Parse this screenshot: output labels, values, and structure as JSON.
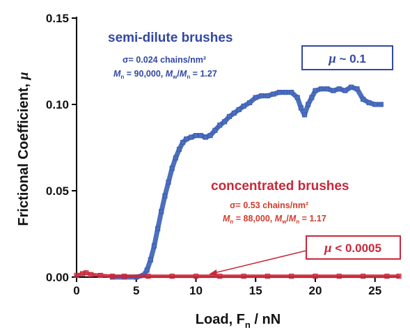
{
  "chart_data": {
    "type": "scatter",
    "xlabel": "Load, F",
    "xlabel_sub": "n",
    "xlabel_unit": " / nN",
    "ylabel": "Frictional Coefficient, ",
    "ylabel_mu": "μ",
    "xlim": [
      0,
      27
    ],
    "ylim": [
      0,
      0.15
    ],
    "xticks": [
      0,
      5,
      10,
      15,
      20,
      25
    ],
    "xtick_labels": [
      "0",
      "5",
      "10",
      "15",
      "20",
      "25"
    ],
    "yticks": [
      0,
      0.05,
      0.1,
      0.15
    ],
    "ytick_labels": [
      "0.00",
      "0.05",
      "0.10",
      "0.15"
    ],
    "series": [
      {
        "name": "semi-dilute brushes",
        "color": "#3a5fb5",
        "points": [
          [
            3.0,
            0.0
          ],
          [
            4.0,
            0.0
          ],
          [
            5.0,
            0.0
          ],
          [
            5.6,
            0.001
          ],
          [
            5.9,
            0.004
          ],
          [
            6.2,
            0.01
          ],
          [
            6.5,
            0.018
          ],
          [
            6.8,
            0.028
          ],
          [
            7.1,
            0.038
          ],
          [
            7.4,
            0.047
          ],
          [
            7.7,
            0.055
          ],
          [
            8.0,
            0.063
          ],
          [
            8.3,
            0.069
          ],
          [
            8.6,
            0.074
          ],
          [
            8.9,
            0.078
          ],
          [
            9.2,
            0.08
          ],
          [
            9.6,
            0.081
          ],
          [
            10.0,
            0.082
          ],
          [
            10.4,
            0.082
          ],
          [
            10.8,
            0.081
          ],
          [
            11.2,
            0.082
          ],
          [
            11.6,
            0.085
          ],
          [
            12.0,
            0.088
          ],
          [
            12.4,
            0.09
          ],
          [
            12.8,
            0.093
          ],
          [
            13.2,
            0.095
          ],
          [
            13.6,
            0.097
          ],
          [
            14.0,
            0.099
          ],
          [
            14.5,
            0.101
          ],
          [
            15.0,
            0.104
          ],
          [
            15.5,
            0.105
          ],
          [
            16.0,
            0.105
          ],
          [
            16.5,
            0.106
          ],
          [
            17.0,
            0.107
          ],
          [
            17.5,
            0.107
          ],
          [
            18.0,
            0.107
          ],
          [
            18.5,
            0.104
          ],
          [
            18.8,
            0.098
          ],
          [
            19.1,
            0.094
          ],
          [
            19.4,
            0.1
          ],
          [
            19.7,
            0.104
          ],
          [
            20.0,
            0.108
          ],
          [
            20.5,
            0.109
          ],
          [
            21.0,
            0.109
          ],
          [
            21.5,
            0.108
          ],
          [
            22.0,
            0.109
          ],
          [
            22.5,
            0.108
          ],
          [
            23.0,
            0.11
          ],
          [
            23.5,
            0.109
          ],
          [
            24.0,
            0.103
          ],
          [
            24.5,
            0.101
          ],
          [
            25.0,
            0.1
          ],
          [
            25.5,
            0.1
          ]
        ]
      },
      {
        "name": "concentrated brushes",
        "color": "#c8283a",
        "points": [
          [
            0.0,
            0.001
          ],
          [
            0.5,
            0.002
          ],
          [
            0.8,
            0.0025
          ],
          [
            1.2,
            0.0015
          ],
          [
            2.0,
            0.001
          ],
          [
            3.0,
            0.0005
          ],
          [
            4.0,
            0.0005
          ],
          [
            6.0,
            0.0005
          ],
          [
            8.0,
            0.0005
          ],
          [
            10.0,
            0.0005
          ],
          [
            12.0,
            0.0005
          ],
          [
            14.0,
            0.0005
          ],
          [
            16.0,
            0.0005
          ],
          [
            18.0,
            0.0005
          ],
          [
            20.0,
            0.0005
          ],
          [
            22.0,
            0.0005
          ],
          [
            24.0,
            0.0005
          ],
          [
            26.0,
            0.0005
          ],
          [
            27.0,
            0.0005
          ]
        ]
      }
    ],
    "annotations": {
      "semi": {
        "title": "semi-dilute brushes",
        "sigma": "σ= 0.024 chains/nm²",
        "mn_label": "M",
        "mn_sub": "n",
        "mn_value": " = 90,000,  ",
        "mw_label": "M",
        "mw_sub": "w",
        "slash": "/",
        "mn2_label": "M",
        "mn2_sub": "n",
        "ratio_value": " = 1.27",
        "color": "#3347a3"
      },
      "conc": {
        "title": "concentrated brushes",
        "sigma": "σ= 0.53 chains/nm²",
        "mn_label": "M",
        "mn_sub": "n",
        "mn_value": " = 88,000,  ",
        "mw_label": "M",
        "mw_sub": "w",
        "slash": "/",
        "mn2_label": "M",
        "mn2_sub": "n",
        "ratio_value": " = 1.17",
        "color": "#d23b2a"
      },
      "box_high": {
        "mu": "μ",
        "text": " ~ 0.1",
        "color": "#3347a3"
      },
      "box_low": {
        "mu": "μ",
        "text": " < 0.0005",
        "color": "#c8283a"
      }
    }
  }
}
